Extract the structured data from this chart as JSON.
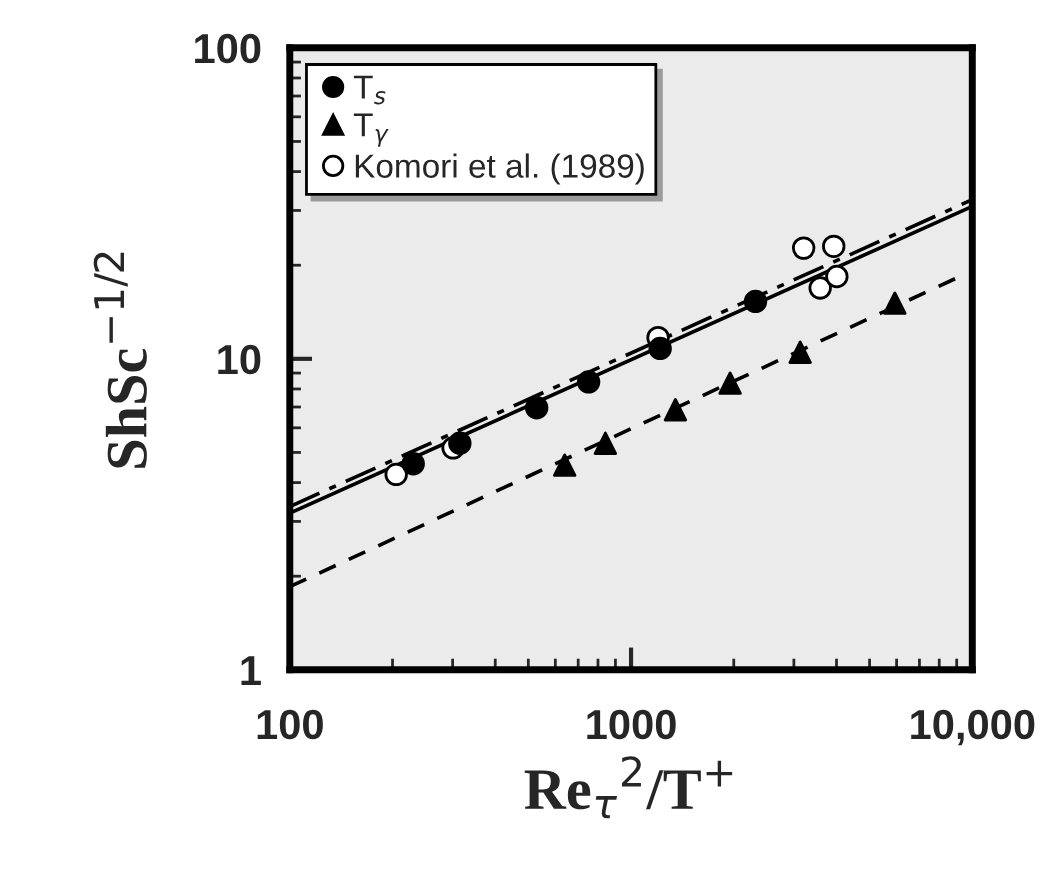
{
  "chart_data": {
    "type": "scatter",
    "xlabel": "Re$_{τ}$$^{2}$/T$^{+}$",
    "ylabel": "ShSc$^{−1/2}$",
    "log": "xy",
    "xlim": [
      100,
      10000
    ],
    "ylim": [
      1,
      100
    ],
    "xticks": [
      100,
      1000,
      {
        "value": 10000,
        "label": "10,000"
      }
    ],
    "yticks": [
      1,
      10,
      100
    ],
    "grid": false,
    "legend": "top left",
    "series": [
      {
        "name": "T$_{s}$",
        "marker": "circle",
        "color": "#000000",
        "x": [
          230,
          315,
          529,
          751,
          1217,
          2316
        ],
        "values": [
          4.6,
          5.35,
          6.96,
          8.43,
          10.8,
          15.3
        ]
      },
      {
        "name": "T$_{γ}$",
        "marker": "triangle",
        "color": "#000000",
        "x": [
          639,
          841,
          1349,
          1951,
          3130,
          5929
        ],
        "values": [
          4.55,
          5.35,
          6.86,
          8.35,
          10.5,
          15.1
        ]
      },
      {
        "name": "Komori et al. (1989)",
        "marker": "circle",
        "color": "#ffffff",
        "x": [
          205,
          301,
          1200,
          3205,
          3926,
          3583,
          4009
        ],
        "values": [
          4.25,
          5.17,
          11.7,
          22.7,
          23,
          16.9,
          18.4
        ]
      },
      {
        "type": "line",
        "line_style": "solid",
        "color": "#000000",
        "x": [
          100,
          10000
        ],
        "values": [
          3.19,
          30.9
        ]
      },
      {
        "type": "line",
        "line_style": "dashdot",
        "color": "#000000",
        "x": [
          100,
          10000
        ],
        "values": [
          3.35,
          32.5
        ]
      },
      {
        "type": "line",
        "line_style": "dashed",
        "color": "#000000",
        "x": [
          100,
          9200
        ],
        "values": [
          1.85,
          18.4
        ]
      }
    ]
  }
}
